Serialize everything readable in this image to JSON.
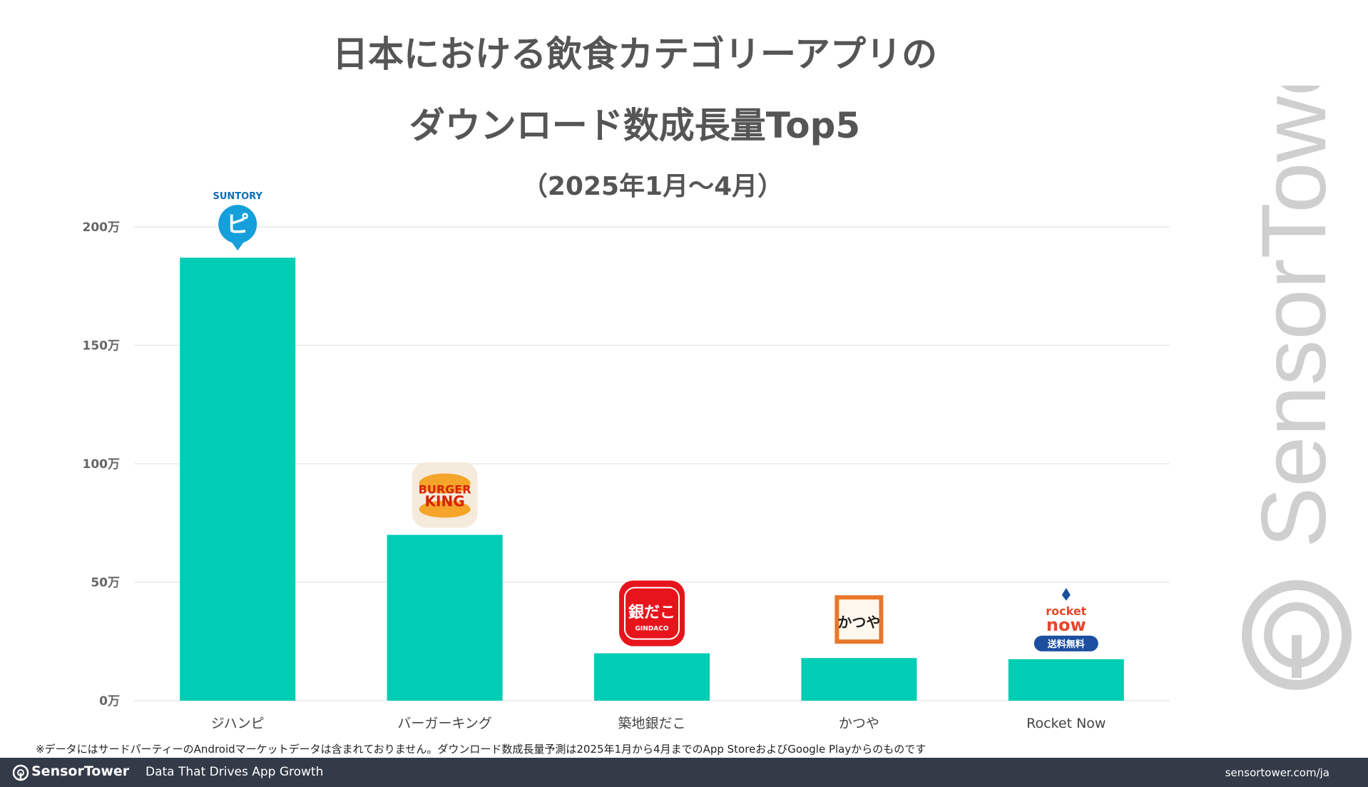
{
  "chart_data": {
    "type": "bar",
    "title_lines": [
      "日本における飲食カテゴリーアプリの",
      "ダウンロード数成長量Top5"
    ],
    "subtitle": "（2025年1月〜4月）",
    "categories": [
      "ジハンピ",
      "バーガーキング",
      "築地銀だこ",
      "かつや",
      "Rocket Now"
    ],
    "values": [
      187,
      70,
      20,
      18,
      17.5
    ],
    "ylim": [
      0,
      200
    ],
    "y_ticks": [
      0,
      50,
      100,
      150,
      200
    ],
    "y_tick_labels": [
      "0万",
      "50万",
      "100万",
      "150万",
      "200万"
    ],
    "grid": true,
    "bar_color": "#00cdb4",
    "app_icons": [
      {
        "name": "suntory-pi-icon",
        "text": "SUNTORY",
        "glyph": "ピ"
      },
      {
        "name": "burger-king-icon",
        "line1": "BURGER",
        "line2": "KING"
      },
      {
        "name": "gindaco-icon",
        "text": "銀だこ",
        "small": "GINDACO"
      },
      {
        "name": "katsuya-icon",
        "text": "かつや"
      },
      {
        "name": "rocket-now-icon",
        "line1": "rocket",
        "line2": "now",
        "badge": "送料無料"
      }
    ]
  },
  "note": "※データにはサードパーティーのAndroidマーケットデータは含まれておりません。ダウンロード数成長量予測は2025年1月から4月までのApp StoreおよびGoogle Playからのものです",
  "footer": {
    "brand": "SensorTower",
    "tagline": "Data That Drives App Growth",
    "url": "sensortower.com/ja"
  },
  "watermark": "SensorTower",
  "colors": {
    "accent": "#00cdb4",
    "footer_bg": "#343b48",
    "grid": "#dddddd"
  }
}
